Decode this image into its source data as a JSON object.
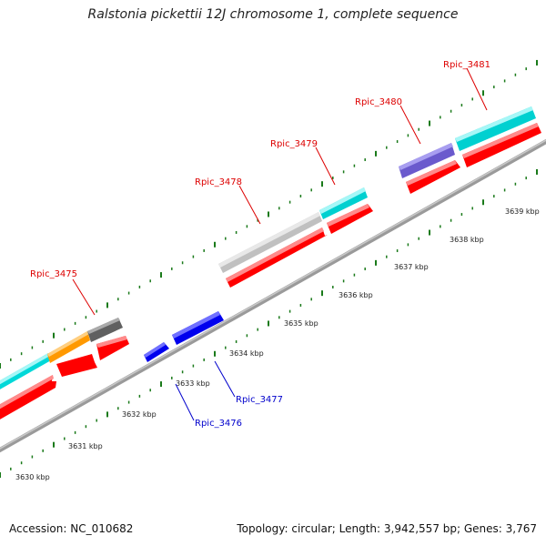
{
  "title": "Ralstonia pickettii 12J chromosome 1, complete sequence",
  "footer": {
    "accession": "Accession: NC_010682",
    "topology": "Topology: circular; Length: 3,942,557 bp; Genes: 3,767"
  },
  "colors": {
    "backbone": "#8a8a8a",
    "tick": "#1a7a1a",
    "cds": "#ff0000",
    "label_forward": "#dd0000",
    "label_reverse": "#0000cc",
    "reverse_gene": "#0000ff"
  },
  "ticks": [
    {
      "label": "3630 kbp"
    },
    {
      "label": "3631 kbp"
    },
    {
      "label": "3632 kbp"
    },
    {
      "label": "3633 kbp"
    },
    {
      "label": "3634 kbp"
    },
    {
      "label": "3635 kbp"
    },
    {
      "label": "3636 kbp"
    },
    {
      "label": "3637 kbp"
    },
    {
      "label": "3638 kbp"
    },
    {
      "label": "3639 kbp"
    }
  ],
  "genes": [
    {
      "name": "Rpic_3475"
    },
    {
      "name": "Rpic_3476"
    },
    {
      "name": "Rpic_3477"
    },
    {
      "name": "Rpic_3478"
    },
    {
      "name": "Rpic_3479"
    },
    {
      "name": "Rpic_3480"
    },
    {
      "name": "Rpic_3481"
    }
  ]
}
